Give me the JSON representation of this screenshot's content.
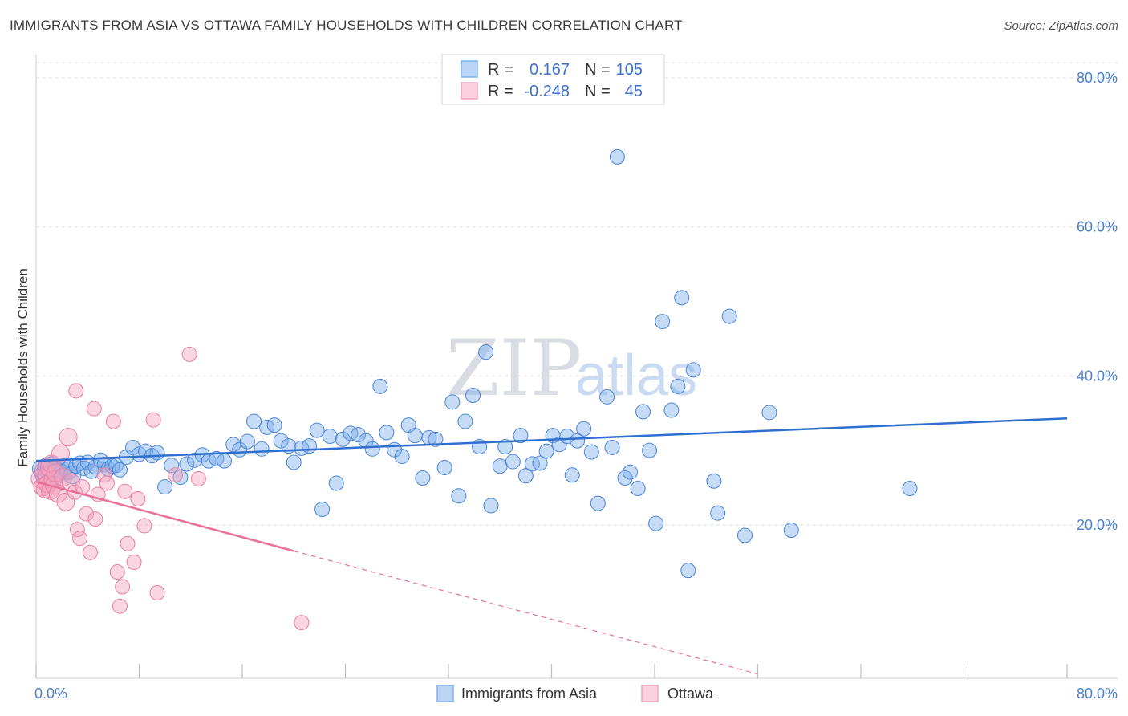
{
  "title": "IMMIGRANTS FROM ASIA VS OTTAWA FAMILY HOUSEHOLDS WITH CHILDREN CORRELATION CHART",
  "source": "Source: ZipAtlas.com",
  "watermark": {
    "zip": "ZIP",
    "atlas": "atlas"
  },
  "legend": {
    "rows": [
      {
        "r_label": "R =",
        "r_value": "0.167",
        "n_label": "N =",
        "n_value": "105",
        "color": "#7fb0ea"
      },
      {
        "r_label": "R =",
        "r_value": "-0.248",
        "n_label": "N =",
        "n_value": "45",
        "color": "#f4a3be"
      }
    ]
  },
  "bottom_legend": [
    {
      "label": "Immigrants from Asia",
      "color": "#7fb0ea"
    },
    {
      "label": "Ottawa",
      "color": "#f4a3be"
    }
  ],
  "chart_data": {
    "type": "scatter",
    "xlabel": "",
    "ylabel": "Family Households with Children",
    "xlim": [
      0,
      80
    ],
    "ylim": [
      0,
      80
    ],
    "x_tick_labels": [
      "0.0%",
      "80.0%"
    ],
    "y_tick_labels": [
      "20.0%",
      "40.0%",
      "60.0%",
      "80.0%"
    ],
    "y_ticks": [
      20,
      40,
      60,
      80
    ],
    "series": [
      {
        "name": "Immigrants from Asia",
        "color": "#7fb0ea",
        "stroke": "#4a85d8",
        "trend": {
          "x0": 0,
          "y0": 28.6,
          "x1": 80,
          "y1": 34.3,
          "dashed_from": null
        },
        "points": [
          [
            0.4,
            27.5
          ],
          [
            0.6,
            26.8
          ],
          [
            0.8,
            27.8
          ],
          [
            1.0,
            27.2
          ],
          [
            1.2,
            28.0
          ],
          [
            1.4,
            26.6
          ],
          [
            1.6,
            27.6
          ],
          [
            1.8,
            27.1
          ],
          [
            2.0,
            26.9
          ],
          [
            2.2,
            27.7
          ],
          [
            2.5,
            27.3
          ],
          [
            2.8,
            26.7
          ],
          [
            3.1,
            27.9
          ],
          [
            3.4,
            28.3
          ],
          [
            3.7,
            27.6
          ],
          [
            4.0,
            28.4
          ],
          [
            4.3,
            27.2
          ],
          [
            4.6,
            27.8
          ],
          [
            5.0,
            28.7
          ],
          [
            5.3,
            28.1
          ],
          [
            5.6,
            27.5
          ],
          [
            5.9,
            27.9
          ],
          [
            6.2,
            28.0
          ],
          [
            6.5,
            27.4
          ],
          [
            7.0,
            29.1
          ],
          [
            7.5,
            30.4
          ],
          [
            8.0,
            29.5
          ],
          [
            8.5,
            29.9
          ],
          [
            9.0,
            29.3
          ],
          [
            9.4,
            29.7
          ],
          [
            10.0,
            25.1
          ],
          [
            10.5,
            28.0
          ],
          [
            11.2,
            26.4
          ],
          [
            11.7,
            28.2
          ],
          [
            12.3,
            28.7
          ],
          [
            12.9,
            29.4
          ],
          [
            13.4,
            28.6
          ],
          [
            14.0,
            28.9
          ],
          [
            14.6,
            28.6
          ],
          [
            15.3,
            30.8
          ],
          [
            15.8,
            30.1
          ],
          [
            16.4,
            31.2
          ],
          [
            16.9,
            33.9
          ],
          [
            17.5,
            30.2
          ],
          [
            17.9,
            33.1
          ],
          [
            18.5,
            33.4
          ],
          [
            19.0,
            31.3
          ],
          [
            19.6,
            30.6
          ],
          [
            20.0,
            28.4
          ],
          [
            20.6,
            30.3
          ],
          [
            21.2,
            30.6
          ],
          [
            21.8,
            32.7
          ],
          [
            22.2,
            22.1
          ],
          [
            22.8,
            31.9
          ],
          [
            23.3,
            25.6
          ],
          [
            23.8,
            31.5
          ],
          [
            24.4,
            32.3
          ],
          [
            25.0,
            32.1
          ],
          [
            25.6,
            31.3
          ],
          [
            26.1,
            30.2
          ],
          [
            26.7,
            38.6
          ],
          [
            27.2,
            32.4
          ],
          [
            27.8,
            30.1
          ],
          [
            28.4,
            29.2
          ],
          [
            28.9,
            33.4
          ],
          [
            29.4,
            32.0
          ],
          [
            30.0,
            26.3
          ],
          [
            30.5,
            31.7
          ],
          [
            31.0,
            31.5
          ],
          [
            31.7,
            27.7
          ],
          [
            32.3,
            36.5
          ],
          [
            32.8,
            23.9
          ],
          [
            33.3,
            33.9
          ],
          [
            33.9,
            37.4
          ],
          [
            34.4,
            30.5
          ],
          [
            34.9,
            43.2
          ],
          [
            35.3,
            22.6
          ],
          [
            36.0,
            27.9
          ],
          [
            36.4,
            30.5
          ],
          [
            37.0,
            28.5
          ],
          [
            37.6,
            32.0
          ],
          [
            38.0,
            26.6
          ],
          [
            38.5,
            28.2
          ],
          [
            39.1,
            28.3
          ],
          [
            39.6,
            29.9
          ],
          [
            40.1,
            32.0
          ],
          [
            40.6,
            30.8
          ],
          [
            41.2,
            31.9
          ],
          [
            41.6,
            26.7
          ],
          [
            42.0,
            31.3
          ],
          [
            42.5,
            32.9
          ],
          [
            43.1,
            29.8
          ],
          [
            43.6,
            22.9
          ],
          [
            44.3,
            37.2
          ],
          [
            44.7,
            30.4
          ],
          [
            45.1,
            69.4
          ],
          [
            45.7,
            26.3
          ],
          [
            46.1,
            27.1
          ],
          [
            46.7,
            24.9
          ],
          [
            47.1,
            35.2
          ],
          [
            47.6,
            30.0
          ],
          [
            48.1,
            20.2
          ],
          [
            48.6,
            47.3
          ],
          [
            49.3,
            35.4
          ],
          [
            49.8,
            38.6
          ],
          [
            50.1,
            50.5
          ],
          [
            50.6,
            13.9
          ],
          [
            51.0,
            40.8
          ],
          [
            52.6,
            25.9
          ],
          [
            52.9,
            21.6
          ],
          [
            53.8,
            48.0
          ],
          [
            55.0,
            18.6
          ],
          [
            56.9,
            35.1
          ],
          [
            58.6,
            19.3
          ],
          [
            67.8,
            24.9
          ]
        ]
      },
      {
        "name": "Ottawa",
        "color": "#f4a3be",
        "stroke": "#e87da3",
        "trend": {
          "x0": 0,
          "y0": 25.8,
          "x1": 20,
          "y1": 16.5,
          "dashed_to_x": 56,
          "dashed_to_y": 0
        },
        "points": [
          [
            0.3,
            26.2
          ],
          [
            0.5,
            25.1
          ],
          [
            0.6,
            27.3
          ],
          [
            0.7,
            24.8
          ],
          [
            0.8,
            26.6
          ],
          [
            0.9,
            25.5
          ],
          [
            1.0,
            27.7
          ],
          [
            1.1,
            24.6
          ],
          [
            1.2,
            28.2
          ],
          [
            1.3,
            26.1
          ],
          [
            1.4,
            25.3
          ],
          [
            1.5,
            27.0
          ],
          [
            1.7,
            24.2
          ],
          [
            1.9,
            29.6
          ],
          [
            2.1,
            26.4
          ],
          [
            2.3,
            23.1
          ],
          [
            2.5,
            31.8
          ],
          [
            2.7,
            25.7
          ],
          [
            3.0,
            24.4
          ],
          [
            3.2,
            19.4
          ],
          [
            3.4,
            18.2
          ],
          [
            3.6,
            25.1
          ],
          [
            3.9,
            21.5
          ],
          [
            4.2,
            16.3
          ],
          [
            4.5,
            35.6
          ],
          [
            4.6,
            20.8
          ],
          [
            4.8,
            24.1
          ],
          [
            5.3,
            26.7
          ],
          [
            5.5,
            25.6
          ],
          [
            6.0,
            33.9
          ],
          [
            6.3,
            13.7
          ],
          [
            6.7,
            11.7
          ],
          [
            6.9,
            24.5
          ],
          [
            6.5,
            9.1
          ],
          [
            7.1,
            17.5
          ],
          [
            7.6,
            15.0
          ],
          [
            7.9,
            23.5
          ],
          [
            8.4,
            19.9
          ],
          [
            9.1,
            34.1
          ],
          [
            9.4,
            10.9
          ],
          [
            10.8,
            26.7
          ],
          [
            11.9,
            42.9
          ],
          [
            12.6,
            26.2
          ],
          [
            20.6,
            6.9
          ],
          [
            3.1,
            38.0
          ]
        ]
      }
    ]
  }
}
